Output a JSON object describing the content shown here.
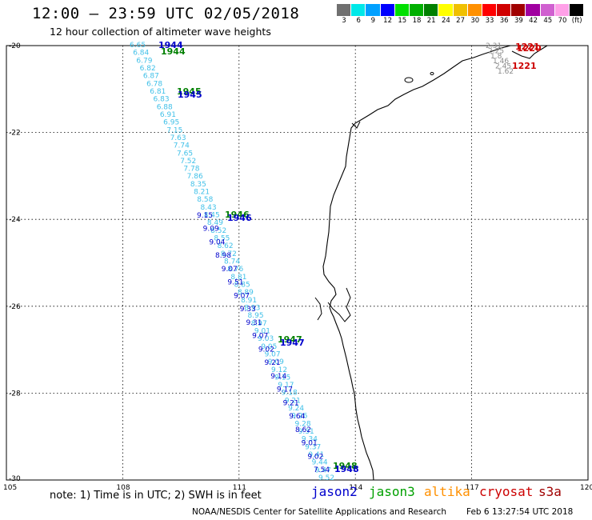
{
  "header": {
    "title": "12:00 – 23:59 UTC 02/05/2018",
    "subtitle": "12 hour collection of altimeter wave heights"
  },
  "colorbar": {
    "cells": [
      {
        "color": "#707070",
        "label": "3"
      },
      {
        "color": "#00e8e8",
        "label": "6"
      },
      {
        "color": "#00a0ff",
        "label": "9"
      },
      {
        "color": "#0000ff",
        "label": "12"
      },
      {
        "color": "#00e000",
        "label": "15"
      },
      {
        "color": "#00b000",
        "label": "18"
      },
      {
        "color": "#008000",
        "label": "21"
      },
      {
        "color": "#ffff00",
        "label": "24"
      },
      {
        "color": "#f0c000",
        "label": "27"
      },
      {
        "color": "#ff9000",
        "label": "30"
      },
      {
        "color": "#ff0000",
        "label": "33"
      },
      {
        "color": "#d00000",
        "label": "36"
      },
      {
        "color": "#a00000",
        "label": "39"
      },
      {
        "color": "#a000a0",
        "label": "42"
      },
      {
        "color": "#d060d0",
        "label": "45"
      },
      {
        "color": "#ffa0e8",
        "label": "70"
      },
      {
        "color": "#000000",
        "label": "(ft)"
      }
    ]
  },
  "axes": {
    "lon_ticks": [
      "105",
      "108",
      "111",
      "114",
      "117",
      "120"
    ],
    "lat_ticks": [
      "-20",
      "-22",
      "-24",
      "-26",
      "-28",
      "-30"
    ]
  },
  "track_labels": {
    "time_labels": [
      {
        "text": "1944",
        "color": "#0000cc"
      },
      {
        "text": "1944",
        "color": "#008000"
      },
      {
        "text": "1945",
        "color": "#008000"
      },
      {
        "text": "1945",
        "color": "#0000cc"
      },
      {
        "text": "1946",
        "color": "#008000"
      },
      {
        "text": "1946",
        "color": "#0000cc"
      },
      {
        "text": "1947",
        "color": "#008000"
      },
      {
        "text": "1947",
        "color": "#0000cc"
      },
      {
        "text": "1948",
        "color": "#008000"
      },
      {
        "text": "1948",
        "color": "#0000cc"
      },
      {
        "text": "1221",
        "color": "#cc0000"
      },
      {
        "text": "1220",
        "color": "#cc0000"
      },
      {
        "text": "1221",
        "color": "#cc0000"
      }
    ],
    "cyan_values": [
      "6.65",
      "6.84",
      "6.79",
      "6.82",
      "6.87",
      "6.78",
      "6.81",
      "6.83",
      "6.88",
      "6.91",
      "6.95",
      "7.15",
      "7.63",
      "7.74",
      "7.65",
      "7.52",
      "7.78",
      "7.86",
      "8.35",
      "8.21",
      "8.58",
      "8.43",
      "8.45",
      "8.49",
      "8.52",
      "8.55",
      "8.62",
      "8.72",
      "8.74",
      "8.76",
      "8.81",
      "8.85",
      "8.89",
      "8.91",
      "8.93",
      "8.95",
      "8.97",
      "9.01",
      "9.03",
      "9.05",
      "9.07",
      "9.09",
      "9.12",
      "9.15",
      "9.17",
      "9.18",
      "9.21",
      "9.24",
      "9.26",
      "9.28",
      "9.31",
      "9.34",
      "9.37",
      "9.41",
      "9.44",
      "9.47",
      "9.52"
    ],
    "blue_values": [
      "9.15",
      "9.09",
      "9.04",
      "8.98",
      "9.07",
      "9.51",
      "9.07",
      "9.33",
      "9.31",
      "9.07",
      "9.02",
      "9.21",
      "9.14",
      "9.17",
      "9.21",
      "9.64",
      "8.62",
      "9.01",
      "9.02",
      "7.54"
    ],
    "gray_values": [
      "2.31",
      "2.25",
      "1.8",
      "1.46",
      "2.45",
      "1.62"
    ]
  },
  "footer": {
    "note": "note: 1) Time is in UTC; 2) SWH is in feet",
    "satellites": [
      {
        "name": "jason2",
        "color": "#0000cc"
      },
      {
        "name": "jason3",
        "color": "#00a000"
      },
      {
        "name": "altika",
        "color": "#ff9000"
      },
      {
        "name": "cryosat",
        "color": "#cc0000"
      },
      {
        "name": "s3a",
        "color": "#a00000"
      }
    ],
    "credit": "NOAA/NESDIS Center for Satellite Applications and Research",
    "timestamp": "Feb  6 13:27:54 UTC 2018"
  }
}
